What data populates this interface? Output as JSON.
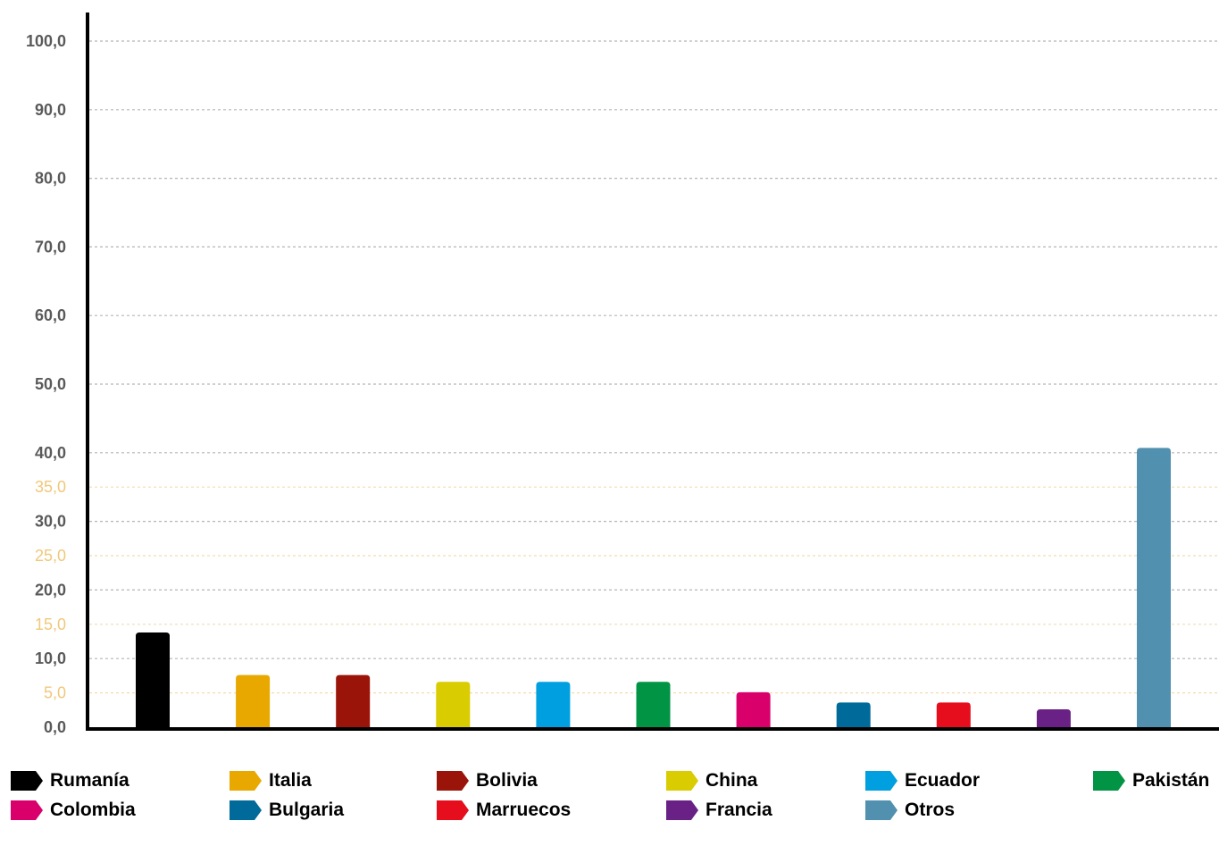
{
  "chart_data": {
    "type": "bar",
    "categories": [
      "Rumanía",
      "Italia",
      "Bolivia",
      "China",
      "Ecuador",
      "Pakistán",
      "Colombia",
      "Bulgaria",
      "Marruecos",
      "Francia",
      "Otros"
    ],
    "values": [
      13.8,
      7.6,
      7.6,
      6.6,
      6.6,
      6.6,
      5.1,
      3.6,
      3.6,
      2.6,
      40.7
    ],
    "colors": [
      "#000000",
      "#e8a800",
      "#9a1409",
      "#d9cc00",
      "#00a0e0",
      "#009444",
      "#d9006c",
      "#006a9a",
      "#e60e1c",
      "#6a2185",
      "#5190ae"
    ],
    "ylim": [
      0,
      100
    ],
    "major_ticks": [
      "0,0",
      "10,0",
      "20,0",
      "30,0",
      "40,0",
      "50,0",
      "60,0",
      "70,0",
      "80,0",
      "90,0",
      "100,0"
    ],
    "minor_ticks": [
      "5,0",
      "15,0",
      "25,0",
      "35,0"
    ],
    "grid": true,
    "legend_position": "bottom",
    "legend": [
      {
        "label": "Rumanía",
        "color": "#000000"
      },
      {
        "label": "Italia",
        "color": "#e8a800"
      },
      {
        "label": "Bolivia",
        "color": "#9a1409"
      },
      {
        "label": "China",
        "color": "#d9cc00"
      },
      {
        "label": "Ecuador",
        "color": "#00a0e0"
      },
      {
        "label": "Pakistán",
        "color": "#009444"
      },
      {
        "label": "Colombia",
        "color": "#d9006c"
      },
      {
        "label": "Bulgaria",
        "color": "#006a9a"
      },
      {
        "label": "Marruecos",
        "color": "#e60e1c"
      },
      {
        "label": "Francia",
        "color": "#6a2185"
      },
      {
        "label": "Otros",
        "color": "#5190ae"
      }
    ]
  }
}
